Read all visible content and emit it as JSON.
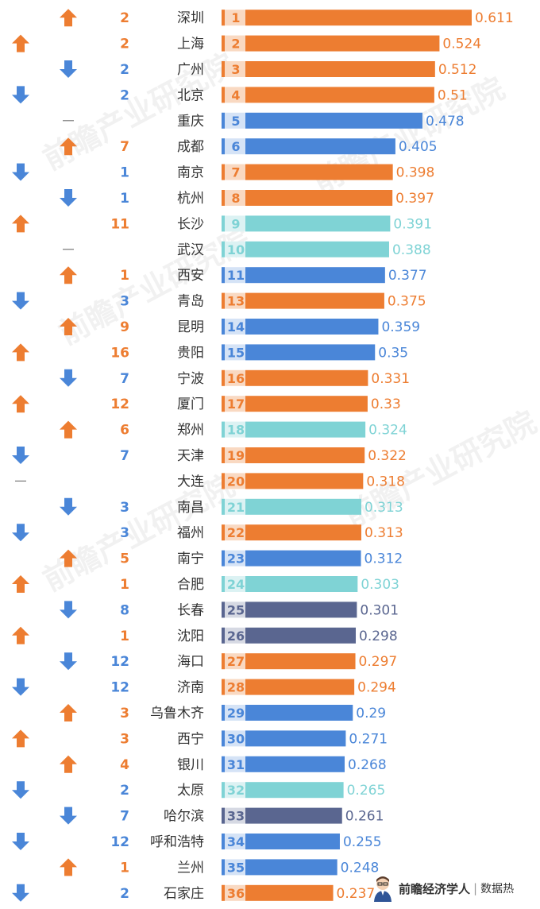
{
  "colors": {
    "orange": "#ED7D31",
    "blue": "#4A86D8",
    "teal": "#7FD3D5",
    "slate": "#5A6690",
    "up_arrow": "#ED7D31",
    "down_arrow": "#4A86D8",
    "badge_bg_orange": "#F9D9C2",
    "badge_bg_blue": "#D5E3F6",
    "badge_bg_teal": "#DCF2F3",
    "badge_bg_slate": "#D6D9E3"
  },
  "footer": {
    "brand": "前瞻经济学人",
    "separator": "|",
    "sub": "数据热"
  },
  "watermark_text": "前瞻产业研究院",
  "chart_data": {
    "type": "bar",
    "orientation": "horizontal",
    "value_range": [
      0,
      0.611
    ],
    "rows": [
      {
        "city": "深圳",
        "rank": "1",
        "value": 0.611,
        "color": "orange",
        "c2": {
          "dir": "up",
          "n": "2",
          "c": "orange"
        },
        "c1": null
      },
      {
        "city": "上海",
        "rank": "2",
        "value": 0.524,
        "color": "orange",
        "c2": {
          "dir": "none",
          "n": "2",
          "c": "orange"
        },
        "c1": {
          "dir": "up"
        }
      },
      {
        "city": "广州",
        "rank": "3",
        "value": 0.512,
        "color": "orange",
        "c2": {
          "dir": "down",
          "n": "2",
          "c": "blue"
        },
        "c1": null
      },
      {
        "city": "北京",
        "rank": "4",
        "value": 0.51,
        "color": "orange",
        "c2": {
          "dir": "none",
          "n": "2",
          "c": "blue"
        },
        "c1": {
          "dir": "down"
        }
      },
      {
        "city": "重庆",
        "rank": "5",
        "value": 0.478,
        "color": "blue",
        "c2": {
          "dir": "dash",
          "n": "",
          "c": "blue"
        },
        "c1": null
      },
      {
        "city": "成都",
        "rank": "6",
        "value": 0.405,
        "color": "blue",
        "c2": {
          "dir": "up",
          "n": "7",
          "c": "orange"
        },
        "c1": null
      },
      {
        "city": "南京",
        "rank": "7",
        "value": 0.398,
        "color": "orange",
        "c2": {
          "dir": "none",
          "n": "1",
          "c": "blue"
        },
        "c1": {
          "dir": "down"
        }
      },
      {
        "city": "杭州",
        "rank": "8",
        "value": 0.397,
        "color": "orange",
        "c2": {
          "dir": "down",
          "n": "1",
          "c": "blue"
        },
        "c1": null
      },
      {
        "city": "长沙",
        "rank": "9",
        "value": 0.391,
        "color": "teal",
        "c2": {
          "dir": "none",
          "n": "11",
          "c": "orange"
        },
        "c1": {
          "dir": "up"
        }
      },
      {
        "city": "武汉",
        "rank": "10",
        "value": 0.388,
        "color": "teal",
        "c2": {
          "dir": "dash",
          "n": "",
          "c": "blue"
        },
        "c1": null
      },
      {
        "city": "西安",
        "rank": "11",
        "value": 0.377,
        "color": "blue",
        "c2": {
          "dir": "up",
          "n": "1",
          "c": "orange"
        },
        "c1": null
      },
      {
        "city": "青岛",
        "rank": "13",
        "value": 0.375,
        "color": "orange",
        "c2": {
          "dir": "none",
          "n": "3",
          "c": "blue"
        },
        "c1": {
          "dir": "down"
        }
      },
      {
        "city": "昆明",
        "rank": "14",
        "value": 0.359,
        "color": "blue",
        "c2": {
          "dir": "up",
          "n": "9",
          "c": "orange"
        },
        "c1": null
      },
      {
        "city": "贵阳",
        "rank": "15",
        "value": 0.35,
        "color": "blue",
        "c2": {
          "dir": "none",
          "n": "16",
          "c": "orange"
        },
        "c1": {
          "dir": "up"
        }
      },
      {
        "city": "宁波",
        "rank": "16",
        "value": 0.331,
        "color": "orange",
        "c2": {
          "dir": "down",
          "n": "7",
          "c": "blue"
        },
        "c1": null
      },
      {
        "city": "厦门",
        "rank": "17",
        "value": 0.33,
        "color": "orange",
        "c2": {
          "dir": "none",
          "n": "12",
          "c": "orange"
        },
        "c1": {
          "dir": "up"
        }
      },
      {
        "city": "郑州",
        "rank": "18",
        "value": 0.324,
        "color": "teal",
        "c2": {
          "dir": "up",
          "n": "6",
          "c": "orange"
        },
        "c1": null
      },
      {
        "city": "天津",
        "rank": "19",
        "value": 0.322,
        "color": "orange",
        "c2": {
          "dir": "none",
          "n": "7",
          "c": "blue"
        },
        "c1": {
          "dir": "down"
        }
      },
      {
        "city": "大连",
        "rank": "20",
        "value": 0.318,
        "color": "orange",
        "c2": {
          "dir": "none",
          "n": "",
          "c": "blue"
        },
        "c1": {
          "dir": "dash"
        }
      },
      {
        "city": "南昌",
        "rank": "21",
        "value": 0.313,
        "color": "teal",
        "c2": {
          "dir": "down",
          "n": "3",
          "c": "blue"
        },
        "c1": null
      },
      {
        "city": "福州",
        "rank": "22",
        "value": 0.313,
        "color": "orange",
        "c2": {
          "dir": "none",
          "n": "3",
          "c": "blue"
        },
        "c1": {
          "dir": "down"
        }
      },
      {
        "city": "南宁",
        "rank": "23",
        "value": 0.312,
        "color": "blue",
        "c2": {
          "dir": "up",
          "n": "5",
          "c": "orange"
        },
        "c1": null
      },
      {
        "city": "合肥",
        "rank": "24",
        "value": 0.303,
        "color": "teal",
        "c2": {
          "dir": "none",
          "n": "1",
          "c": "orange"
        },
        "c1": {
          "dir": "up"
        }
      },
      {
        "city": "长春",
        "rank": "25",
        "value": 0.301,
        "color": "slate",
        "c2": {
          "dir": "down",
          "n": "8",
          "c": "blue"
        },
        "c1": null
      },
      {
        "city": "沈阳",
        "rank": "26",
        "value": 0.298,
        "color": "slate",
        "c2": {
          "dir": "none",
          "n": "1",
          "c": "orange"
        },
        "c1": {
          "dir": "up"
        }
      },
      {
        "city": "海口",
        "rank": "27",
        "value": 0.297,
        "color": "orange",
        "c2": {
          "dir": "down",
          "n": "12",
          "c": "blue"
        },
        "c1": null
      },
      {
        "city": "济南",
        "rank": "28",
        "value": 0.294,
        "color": "orange",
        "c2": {
          "dir": "none",
          "n": "12",
          "c": "blue"
        },
        "c1": {
          "dir": "down"
        }
      },
      {
        "city": "乌鲁木齐",
        "rank": "29",
        "value": 0.29,
        "color": "blue",
        "c2": {
          "dir": "up",
          "n": "3",
          "c": "orange"
        },
        "c1": null
      },
      {
        "city": "西宁",
        "rank": "30",
        "value": 0.271,
        "color": "blue",
        "c2": {
          "dir": "none",
          "n": "3",
          "c": "orange"
        },
        "c1": {
          "dir": "up"
        }
      },
      {
        "city": "银川",
        "rank": "31",
        "value": 0.268,
        "color": "blue",
        "c2": {
          "dir": "up",
          "n": "4",
          "c": "orange"
        },
        "c1": null
      },
      {
        "city": "太原",
        "rank": "32",
        "value": 0.265,
        "color": "teal",
        "c2": {
          "dir": "none",
          "n": "2",
          "c": "blue"
        },
        "c1": {
          "dir": "down"
        }
      },
      {
        "city": "哈尔滨",
        "rank": "33",
        "value": 0.261,
        "color": "slate",
        "c2": {
          "dir": "down",
          "n": "7",
          "c": "blue"
        },
        "c1": null
      },
      {
        "city": "呼和浩特",
        "rank": "34",
        "value": 0.255,
        "color": "blue",
        "c2": {
          "dir": "none",
          "n": "12",
          "c": "blue"
        },
        "c1": {
          "dir": "down"
        }
      },
      {
        "city": "兰州",
        "rank": "35",
        "value": 0.248,
        "color": "blue",
        "c2": {
          "dir": "up",
          "n": "1",
          "c": "orange"
        },
        "c1": null
      },
      {
        "city": "石家庄",
        "rank": "36",
        "value": 0.237,
        "color": "orange",
        "c2": {
          "dir": "none",
          "n": "2",
          "c": "blue"
        },
        "c1": {
          "dir": "down"
        }
      }
    ]
  }
}
